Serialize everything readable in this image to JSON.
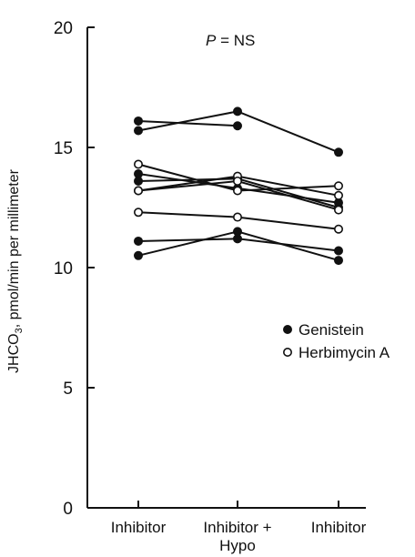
{
  "chart_data": {
    "type": "line",
    "title": "",
    "ylabel_parts": {
      "prefix": "JHCO",
      "sub": "3",
      "suffix": ", pmol/min per millimeter"
    },
    "annotation": {
      "p": "P",
      "rest": " = NS"
    },
    "categories": [
      {
        "line1": "Inhibitor",
        "line2": ""
      },
      {
        "line1": "Inhibitor +",
        "line2": "Hypo"
      },
      {
        "line1": "Inhibitor",
        "line2": ""
      }
    ],
    "ylim": [
      0,
      20
    ],
    "yticks": [
      0,
      5,
      10,
      15,
      20
    ],
    "legend_position": "right-middle",
    "legend": [
      {
        "label": "Genistein",
        "marker": "filled"
      },
      {
        "label": "Herbimycin A",
        "marker": "open"
      }
    ],
    "series": [
      {
        "group": "Genistein",
        "values": [
          16.1,
          15.9,
          null
        ]
      },
      {
        "group": "Genistein",
        "values": [
          15.7,
          16.5,
          14.8
        ]
      },
      {
        "group": "Genistein",
        "values": [
          13.9,
          13.3,
          12.7
        ]
      },
      {
        "group": "Genistein",
        "values": [
          13.6,
          13.7,
          12.5
        ]
      },
      {
        "group": "Genistein",
        "values": [
          11.1,
          11.2,
          10.7
        ]
      },
      {
        "group": "Genistein",
        "values": [
          10.5,
          11.5,
          10.3
        ]
      },
      {
        "group": "Herbimycin A",
        "values": [
          14.3,
          13.2,
          13.4
        ]
      },
      {
        "group": "Herbimycin A",
        "values": [
          13.2,
          13.8,
          13.0
        ]
      },
      {
        "group": "Herbimycin A",
        "values": [
          13.2,
          13.6,
          12.4
        ]
      },
      {
        "group": "Herbimycin A",
        "values": [
          12.3,
          12.1,
          11.6
        ]
      }
    ]
  }
}
